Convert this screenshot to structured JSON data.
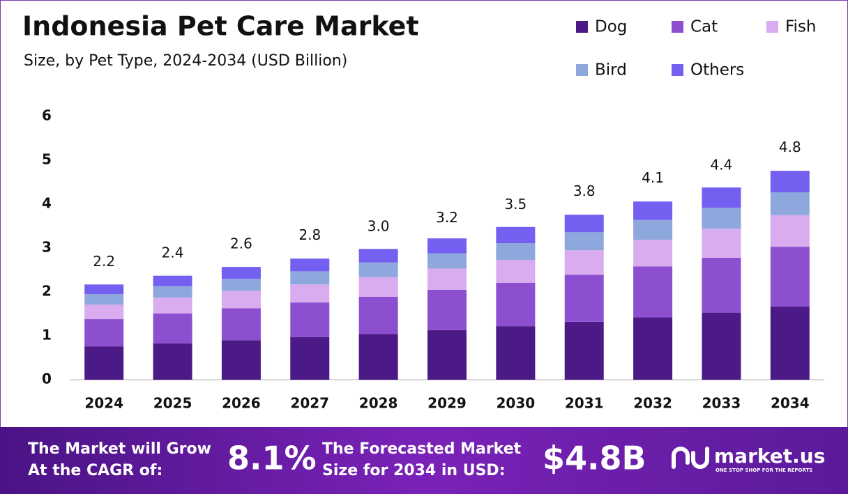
{
  "chart_data": {
    "type": "stacked_bar",
    "title": "Indonesia Pet Care Market",
    "subtitle": "Size, by Pet Type, 2024-2034 (USD Billion)",
    "categories": [
      "2024",
      "2025",
      "2026",
      "2027",
      "2028",
      "2029",
      "2030",
      "2031",
      "2032",
      "2033",
      "2034"
    ],
    "series": [
      {
        "name": "Dog",
        "color": "#4b1a86",
        "values": [
          0.76,
          0.83,
          0.9,
          0.97,
          1.04,
          1.13,
          1.22,
          1.32,
          1.42,
          1.53,
          1.67
        ]
      },
      {
        "name": "Cat",
        "color": "#8c4fd0",
        "values": [
          0.62,
          0.68,
          0.73,
          0.79,
          0.85,
          0.92,
          0.99,
          1.07,
          1.16,
          1.25,
          1.36
        ]
      },
      {
        "name": "Fish",
        "color": "#d8acef",
        "values": [
          0.33,
          0.36,
          0.39,
          0.41,
          0.45,
          0.48,
          0.52,
          0.56,
          0.61,
          0.66,
          0.72
        ]
      },
      {
        "name": "Bird",
        "color": "#8ea7dc",
        "values": [
          0.24,
          0.26,
          0.28,
          0.3,
          0.33,
          0.35,
          0.38,
          0.41,
          0.45,
          0.48,
          0.52
        ]
      },
      {
        "name": "Others",
        "color": "#7460f0",
        "values": [
          0.22,
          0.24,
          0.27,
          0.29,
          0.31,
          0.34,
          0.37,
          0.4,
          0.42,
          0.46,
          0.49
        ]
      }
    ],
    "totals": [
      2.2,
      2.4,
      2.6,
      2.8,
      3.0,
      3.2,
      3.5,
      3.8,
      4.1,
      4.4,
      4.8
    ],
    "total_labels": [
      "2.2",
      "2.4",
      "2.6",
      "2.8",
      "3.0",
      "3.2",
      "3.5",
      "3.8",
      "4.1",
      "4.4",
      "4.8"
    ],
    "ylim": [
      0,
      6
    ],
    "yticks": [
      0,
      1,
      2,
      3,
      4,
      5,
      6
    ],
    "grid": false
  },
  "footer": {
    "cagr_text": [
      "The Market will Grow",
      "At the CAGR of:"
    ],
    "cagr": "8.1%",
    "forecast_text": [
      "The Forecasted Market",
      "Size for 2034 in USD:"
    ],
    "forecast": "$4.8B",
    "brand": "market.us",
    "tagline": "ONE STOP SHOP FOR THE REPORTS"
  }
}
